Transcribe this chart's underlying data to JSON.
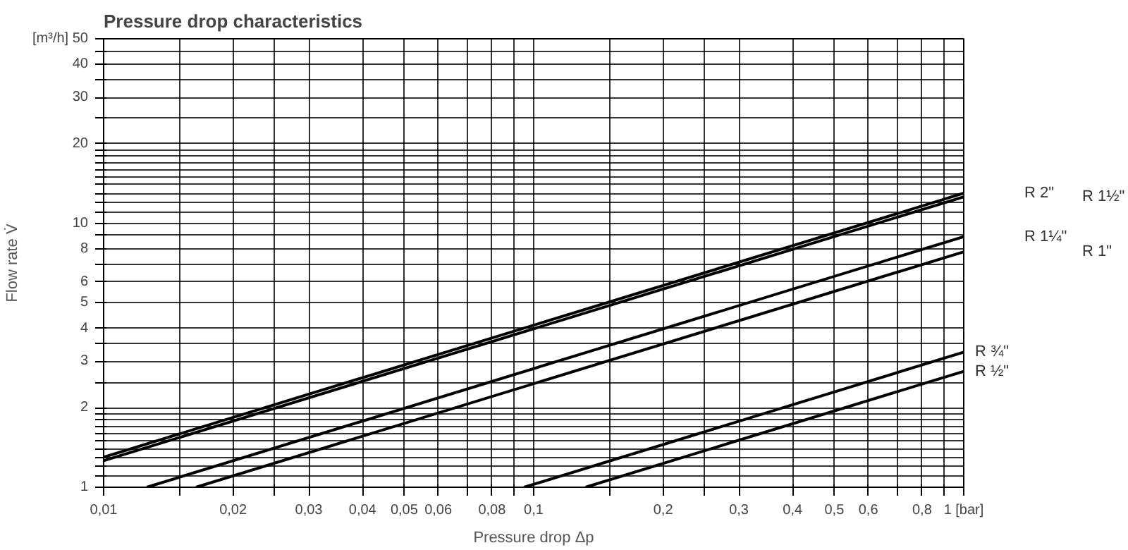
{
  "chart_data": {
    "type": "line",
    "title": "Pressure drop characteristics",
    "xlabel": "Pressure drop Δp",
    "ylabel": "Flow rate V̇",
    "log": "xy",
    "grid": true,
    "marker": "none",
    "line_style": "solid",
    "xlim": [
      0.01,
      1
    ],
    "ylim": [
      1,
      50
    ],
    "xticks": [
      {
        "value": 0.01,
        "label": "0,01"
      },
      {
        "value": 0.015,
        "label": null
      },
      {
        "value": 0.02,
        "label": "0,02"
      },
      {
        "value": 0.025,
        "label": null
      },
      {
        "value": 0.03,
        "label": "0,03"
      },
      {
        "value": 0.04,
        "label": "0,04"
      },
      {
        "value": 0.05,
        "label": "0,05"
      },
      {
        "value": 0.06,
        "label": "0,06"
      },
      {
        "value": 0.07,
        "label": null
      },
      {
        "value": 0.08,
        "label": "0,08"
      },
      {
        "value": 0.09,
        "label": null
      },
      {
        "value": 0.1,
        "label": "0,1"
      },
      {
        "value": 0.15,
        "label": null
      },
      {
        "value": 0.2,
        "label": "0,2"
      },
      {
        "value": 0.25,
        "label": null
      },
      {
        "value": 0.3,
        "label": "0,3"
      },
      {
        "value": 0.4,
        "label": "0,4"
      },
      {
        "value": 0.5,
        "label": "0,5"
      },
      {
        "value": 0.6,
        "label": "0,6"
      },
      {
        "value": 0.7,
        "label": null
      },
      {
        "value": 0.8,
        "label": "0,8"
      },
      {
        "value": 0.9,
        "label": null
      },
      {
        "value": 1,
        "label": "1 [bar]"
      }
    ],
    "yticks": [
      1,
      {
        "value": 1.1,
        "label": null
      },
      {
        "value": 1.2,
        "label": null
      },
      {
        "value": 1.3,
        "label": null
      },
      {
        "value": 1.4,
        "label": null
      },
      {
        "value": 1.5,
        "label": null
      },
      {
        "value": 1.6,
        "label": null
      },
      {
        "value": 1.7,
        "label": null
      },
      {
        "value": 1.8,
        "label": null
      },
      {
        "value": 1.9,
        "label": null
      },
      2,
      {
        "value": 2.5,
        "label": null
      },
      3,
      {
        "value": 3.5,
        "label": null
      },
      4,
      5,
      6,
      {
        "value": 7,
        "label": null
      },
      8,
      {
        "value": 9,
        "label": null
      },
      10,
      {
        "value": 11,
        "label": null
      },
      {
        "value": 12,
        "label": null
      },
      {
        "value": 13,
        "label": null
      },
      {
        "value": 14,
        "label": null
      },
      {
        "value": 15,
        "label": null
      },
      {
        "value": 16,
        "label": null
      },
      {
        "value": 17,
        "label": null
      },
      {
        "value": 18,
        "label": null
      },
      {
        "value": 19,
        "label": null
      },
      20,
      {
        "value": 25,
        "label": null
      },
      30,
      {
        "value": 35,
        "label": null
      },
      40,
      {
        "value": 45,
        "label": null
      },
      {
        "value": 50,
        "label": "[m³/h] 50"
      }
    ],
    "series": [
      {
        "name": "R 2\"",
        "color": "#000000",
        "x": [
          0.01,
          1
        ],
        "values": [
          1.3,
          13.0
        ]
      },
      {
        "name": "R 1½\"",
        "color": "#000000",
        "x": [
          0.01,
          1
        ],
        "values": [
          1.26,
          12.6
        ]
      },
      {
        "name": "R 1¼\"",
        "color": "#000000",
        "x": [
          0.0126,
          1
        ],
        "values": [
          1,
          8.9
        ]
      },
      {
        "name": "R 1\"",
        "color": "#000000",
        "x": [
          0.0164,
          1
        ],
        "values": [
          1,
          7.8
        ]
      },
      {
        "name": "R ¾\"",
        "color": "#000000",
        "x": [
          0.095,
          1
        ],
        "values": [
          1,
          3.25
        ]
      },
      {
        "name": "R ½\"",
        "color": "#000000",
        "x": [
          0.132,
          1
        ],
        "values": [
          1,
          2.75
        ]
      }
    ]
  }
}
